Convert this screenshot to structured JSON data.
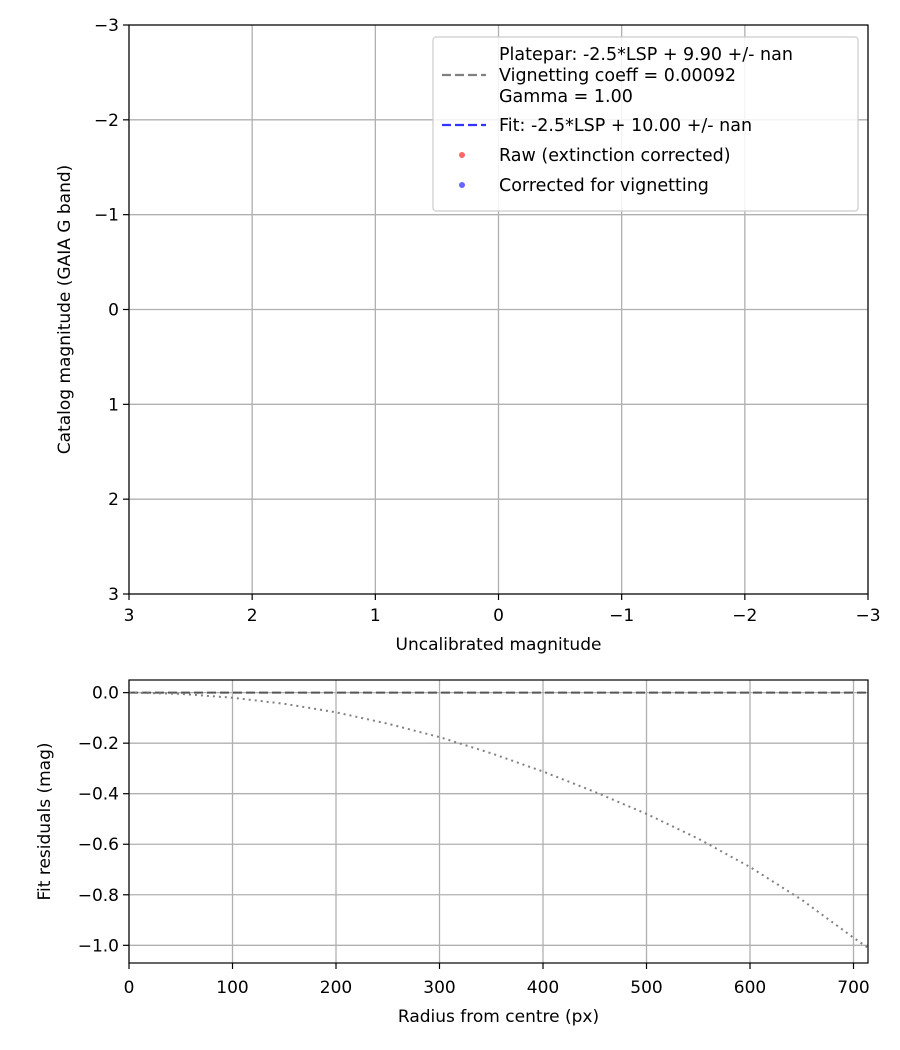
{
  "chart_data": [
    {
      "type": "scatter",
      "title": "",
      "xlabel": "Uncalibrated magnitude",
      "ylabel": "Catalog magnitude (GAIA G band)",
      "xlim": [
        3,
        -3
      ],
      "ylim": [
        3,
        -3
      ],
      "x_ticks": [
        3,
        2,
        1,
        0,
        -1,
        -2,
        -3
      ],
      "y_ticks": [
        -3,
        -2,
        -1,
        0,
        1,
        2,
        3
      ],
      "x_tick_labels": [
        "3",
        "2",
        "1",
        "0",
        "−1",
        "−2",
        "−3"
      ],
      "y_tick_labels": [
        "−3",
        "−2",
        "−1",
        "0",
        "1",
        "2",
        "3"
      ],
      "grid": true,
      "legend_position": "top-right",
      "legend": [
        {
          "kind": "line",
          "style": "dashed",
          "color": "#808080",
          "lines": [
            "Platepar: -2.5*LSP + 9.90 +/- nan",
            "Vignetting coeff = 0.00092",
            "Gamma = 1.00"
          ]
        },
        {
          "kind": "line",
          "style": "dashed",
          "color": "#3333ff",
          "lines": [
            "Fit: -2.5*LSP + 10.00 +/- nan"
          ]
        },
        {
          "kind": "marker",
          "color": "#ff5555",
          "lines": [
            "Raw (extinction corrected)"
          ]
        },
        {
          "kind": "marker",
          "color": "#5555ff",
          "lines": [
            "Corrected for vignetting"
          ]
        }
      ],
      "series": []
    },
    {
      "type": "line",
      "title": "",
      "xlabel": "Radius from centre (px)",
      "ylabel": "Fit residuals (mag)",
      "xlim": [
        0,
        714
      ],
      "ylim": [
        -1.07,
        0.05
      ],
      "x_ticks": [
        0,
        100,
        200,
        300,
        400,
        500,
        600,
        700
      ],
      "y_ticks": [
        0.0,
        -0.2,
        -0.4,
        -0.6,
        -0.8,
        -1.0
      ],
      "x_tick_labels": [
        "0",
        "100",
        "200",
        "300",
        "400",
        "500",
        "600",
        "700"
      ],
      "y_tick_labels": [
        "0.0",
        "−0.2",
        "−0.4",
        "−0.6",
        "−0.8",
        "−1.0"
      ],
      "grid": true,
      "horizontal_lines": [
        {
          "y": 0,
          "style": "dashed",
          "color": "#555555"
        }
      ],
      "series": [
        {
          "style": "dotted",
          "color": "#808080",
          "x": [
            0,
            50,
            100,
            150,
            200,
            250,
            300,
            350,
            400,
            450,
            500,
            550,
            600,
            650,
            700,
            714
          ],
          "y": [
            0.0,
            -0.005,
            -0.02,
            -0.044,
            -0.078,
            -0.123,
            -0.176,
            -0.24,
            -0.312,
            -0.393,
            -0.48,
            -0.578,
            -0.69,
            -0.82,
            -0.97,
            -1.01
          ]
        }
      ]
    }
  ]
}
